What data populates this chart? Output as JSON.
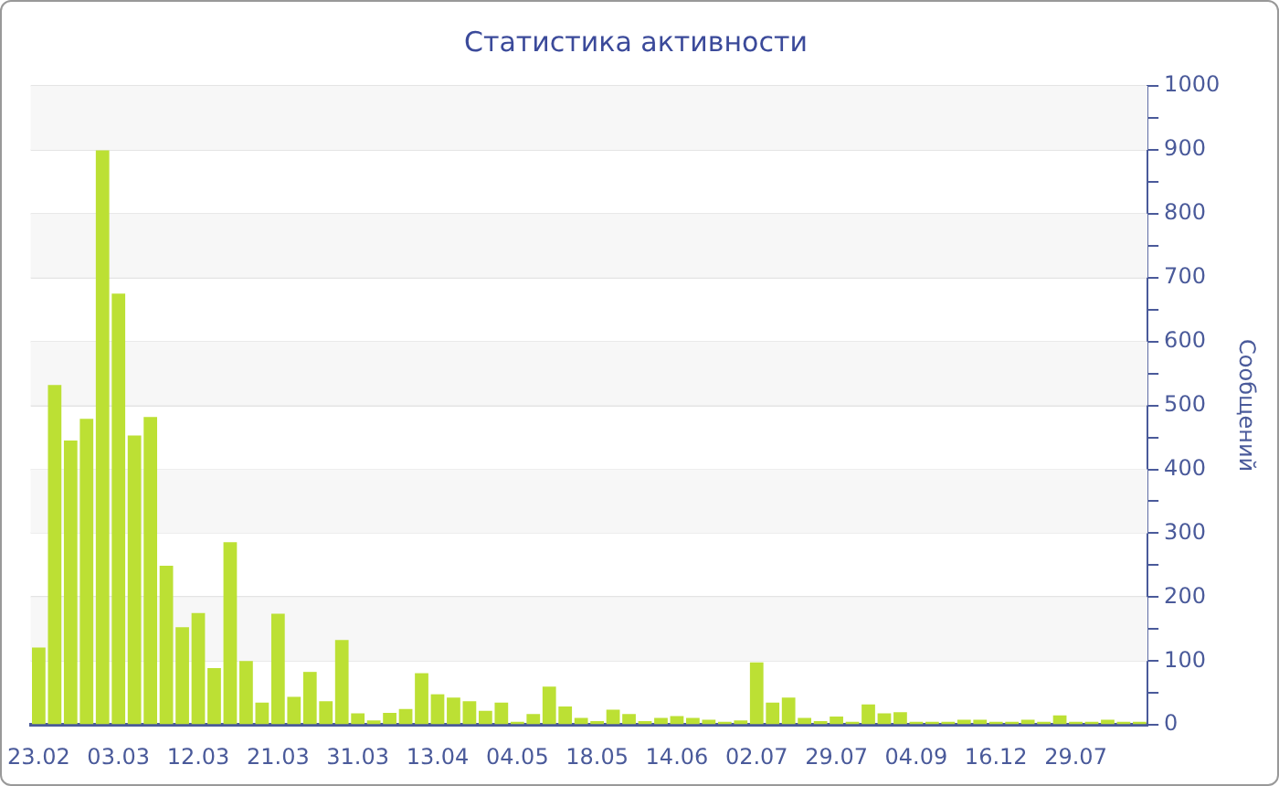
{
  "chart_data": {
    "type": "bar",
    "title": "Статистика активности",
    "ylabel": "Сообщений",
    "categories": [
      "23.02",
      null,
      null,
      null,
      null,
      "03.03",
      null,
      null,
      null,
      null,
      "12.03",
      null,
      null,
      null,
      null,
      "21.03",
      null,
      null,
      null,
      null,
      "31.03",
      null,
      null,
      null,
      null,
      "13.04",
      null,
      null,
      null,
      null,
      "04.05",
      null,
      null,
      null,
      null,
      "18.05",
      null,
      null,
      null,
      null,
      "14.06",
      null,
      null,
      null,
      null,
      "02.07",
      null,
      null,
      null,
      null,
      "29.07",
      null,
      null,
      null,
      null,
      "04.09",
      null,
      null,
      null,
      null,
      "16.12",
      null,
      null,
      null,
      null,
      "29.07",
      null,
      null,
      null,
      null
    ],
    "series": [
      {
        "color": "#bce034",
        "values": [
          121,
          532,
          445,
          479,
          899,
          675,
          453,
          482,
          249,
          153,
          175,
          89,
          286,
          100,
          35,
          174,
          44,
          83,
          37,
          133,
          18,
          7,
          19,
          25,
          81,
          48,
          43,
          37,
          22,
          35,
          5,
          17,
          60,
          29,
          11,
          6,
          24,
          17,
          6,
          11,
          14,
          11,
          8,
          5,
          7,
          98,
          35,
          43,
          11,
          6,
          13,
          5,
          32,
          18,
          20,
          5,
          5,
          5,
          8,
          8,
          5,
          5,
          8,
          5,
          15,
          5,
          5,
          8,
          5,
          5
        ]
      }
    ],
    "ylim": [
      0,
      1000
    ],
    "yticks": [
      0,
      {
        "value": 50,
        "label": null
      },
      100,
      {
        "value": 150,
        "label": null
      },
      200,
      {
        "value": 250,
        "label": null
      },
      300,
      {
        "value": 350,
        "label": null
      },
      400,
      {
        "value": 450,
        "label": null
      },
      500,
      {
        "value": 550,
        "label": null
      },
      600,
      {
        "value": 650,
        "label": null
      },
      700,
      {
        "value": 750,
        "label": null
      },
      800,
      {
        "value": 850,
        "label": null
      },
      900,
      {
        "value": 950,
        "label": null
      },
      1000
    ],
    "grid": "y"
  }
}
